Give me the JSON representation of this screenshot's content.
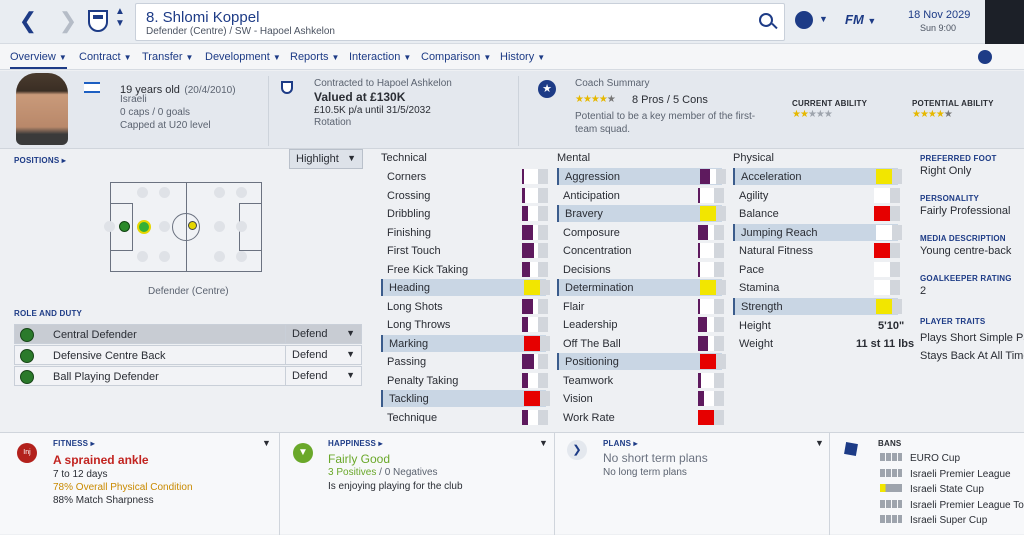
{
  "topbar": {
    "back_icon": "chevron-left-icon",
    "forward_icon": "chevron-right-icon",
    "player_name": "8. Shlomi Koppel",
    "player_sub": "Defender (Centre) / SW - Hapoel Ashkelon",
    "date": "18 Nov 2029",
    "time": "Sun 9:00",
    "fm_label": "FM"
  },
  "tabs": [
    {
      "label": "Overview"
    },
    {
      "label": "Contract"
    },
    {
      "label": "Transfer"
    },
    {
      "label": "Development"
    },
    {
      "label": "Reports"
    },
    {
      "label": "Interaction"
    },
    {
      "label": "Comparison"
    },
    {
      "label": "History"
    }
  ],
  "header": {
    "age": "19 years old",
    "dob": "(20/4/2010)",
    "nationality": "Israeli",
    "caps": "0 caps / 0 goals",
    "capped": "Capped at U20 level",
    "contract_label": "Contracted to Hapoel Ashkelon",
    "valued": "Valued at £130K",
    "wage": "£10.5K p/a until 31/5/2032",
    "status": "Rotation",
    "coach_summary_label": "Coach Summary",
    "pros_cons": "8 Pros / 5 Cons",
    "summary_text": "Potential to be a key member of the first-team squad.",
    "current_ability_label": "CURRENT ABILITY",
    "potential_ability_label": "POTENTIAL ABILITY"
  },
  "positions": {
    "label": "POSITIONS",
    "highlight": "Highlight",
    "position_name": "Defender (Centre)"
  },
  "roles": {
    "label": "ROLE AND DUTY",
    "rows": [
      {
        "name": "Central Defender",
        "duty": "Defend"
      },
      {
        "name": "Defensive Centre Back",
        "duty": "Defend"
      },
      {
        "name": "Ball Playing Defender",
        "duty": "Defend"
      }
    ]
  },
  "attributes": {
    "technical_label": "Technical",
    "mental_label": "Mental",
    "physical_label": "Physical",
    "technical": [
      {
        "name": "Corners",
        "level": 0.15,
        "color": "#5e1a5e"
      },
      {
        "name": "Crossing",
        "level": 0.2,
        "color": "#5e1a5e"
      },
      {
        "name": "Dribbling",
        "level": 0.35,
        "color": "#5e1a5e"
      },
      {
        "name": "Finishing",
        "level": 0.7,
        "color": "#5e1a5e"
      },
      {
        "name": "First Touch",
        "level": 0.75,
        "color": "#5e1a5e"
      },
      {
        "name": "Free Kick Taking",
        "level": 0.5,
        "color": "#5e1a5e"
      },
      {
        "name": "Heading",
        "level": 1.0,
        "color": "#f2e600"
      },
      {
        "name": "Long Shots",
        "level": 0.7,
        "color": "#5e1a5e"
      },
      {
        "name": "Long Throws",
        "level": 0.35,
        "color": "#5e1a5e"
      },
      {
        "name": "Marking",
        "level": 1.0,
        "color": "#e60000"
      },
      {
        "name": "Passing",
        "level": 0.75,
        "color": "#5e1a5e"
      },
      {
        "name": "Penalty Taking",
        "level": 0.35,
        "color": "#5e1a5e"
      },
      {
        "name": "Tackling",
        "level": 1.0,
        "color": "#e60000"
      },
      {
        "name": "Technique",
        "level": 0.4,
        "color": "#5e1a5e"
      }
    ],
    "mental": [
      {
        "name": "Aggression",
        "level": 0.65,
        "color": "#5e1a5e"
      },
      {
        "name": "Anticipation",
        "level": 0.15,
        "color": "#5e1a5e"
      },
      {
        "name": "Bravery",
        "level": 1.0,
        "color": "#f2e600"
      },
      {
        "name": "Composure",
        "level": 0.65,
        "color": "#5e1a5e"
      },
      {
        "name": "Concentration",
        "level": 0.15,
        "color": "#5e1a5e"
      },
      {
        "name": "Decisions",
        "level": 0.15,
        "color": "#5e1a5e"
      },
      {
        "name": "Determination",
        "level": 1.0,
        "color": "#f2e600"
      },
      {
        "name": "Flair",
        "level": 0.15,
        "color": "#5e1a5e"
      },
      {
        "name": "Leadership",
        "level": 0.55,
        "color": "#5e1a5e"
      },
      {
        "name": "Off The Ball",
        "level": 0.6,
        "color": "#5e1a5e"
      },
      {
        "name": "Positioning",
        "level": 1.0,
        "color": "#e60000"
      },
      {
        "name": "Teamwork",
        "level": 0.2,
        "color": "#5e1a5e"
      },
      {
        "name": "Vision",
        "level": 0.35,
        "color": "#5e1a5e"
      },
      {
        "name": "Work Rate",
        "level": 1.0,
        "color": "#e60000"
      }
    ],
    "physical": [
      {
        "name": "Acceleration",
        "level": 1.0,
        "color": "#f2e600"
      },
      {
        "name": "Agility",
        "level": 0.0,
        "color": "#5e1a5e"
      },
      {
        "name": "Balance",
        "level": 1.0,
        "color": "#e60000"
      },
      {
        "name": "Jumping Reach",
        "level": 0.0,
        "color": "#5e1a5e"
      },
      {
        "name": "Natural Fitness",
        "level": 1.0,
        "color": "#e60000"
      },
      {
        "name": "Pace",
        "level": 0.0,
        "color": "#5e1a5e"
      },
      {
        "name": "Stamina",
        "level": 0.0,
        "color": "#5e1a5e"
      },
      {
        "name": "Strength",
        "level": 1.0,
        "color": "#f2e600"
      }
    ],
    "height_label": "Height",
    "height": "5'10\"",
    "weight_label": "Weight",
    "weight": "11 st 11 lbs"
  },
  "side": {
    "preferred_foot_label": "PREFERRED FOOT",
    "preferred_foot": "Right Only",
    "personality_label": "PERSONALITY",
    "personality": "Fairly Professional",
    "media_label": "MEDIA DESCRIPTION",
    "media": "Young centre-back",
    "gk_label": "GOALKEEPER RATING",
    "gk": "2",
    "traits_label": "PLAYER TRAITS",
    "trait1": "Plays Short Simple Pass",
    "trait2": "Stays Back At All Times"
  },
  "bottom": {
    "fitness_label": "FITNESS",
    "injury_badge": "Inj",
    "injury": "A sprained ankle",
    "injury_days": "7 to 12 days",
    "condition": "78% Overall Physical Condition",
    "sharpness": "88% Match Sharpness",
    "happiness_label": "HAPPINESS",
    "happiness": "Fairly Good",
    "positives": "3 Positives",
    "negatives": "0 Negatives",
    "happiness_note": "Is enjoying playing for the club",
    "plans_label": "PLANS",
    "plans": "No short term plans",
    "long_plans": "No long term plans",
    "bans_label": "BANS",
    "bans": [
      "EURO Cup",
      "Israeli Premier League",
      "Israeli State Cup",
      "Israeli Premier League To",
      "Israeli Super Cup"
    ]
  }
}
